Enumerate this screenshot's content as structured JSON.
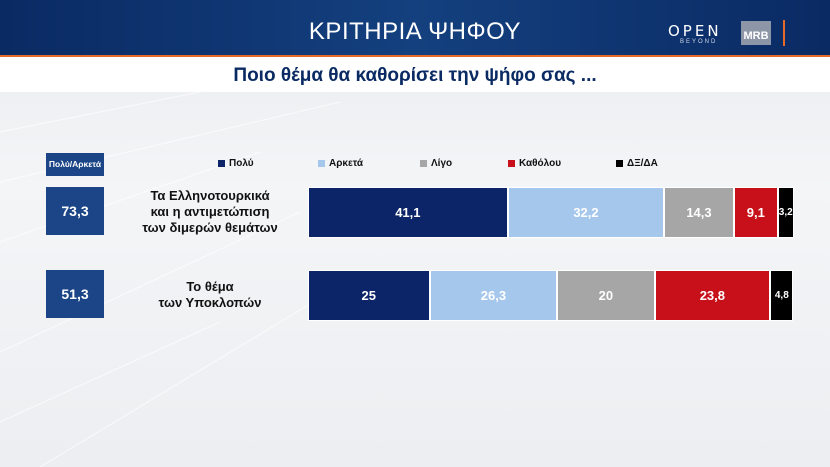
{
  "header": {
    "title": "ΚΡΙΤΗΡΙΑ ΨΗΦΟΥ",
    "logo_open": "OPEN",
    "logo_beyond": "BEYOND",
    "logo_mrb": "MRB"
  },
  "question": "Ποιο θέμα θα καθορίσει την ψήφο σας ...",
  "summary_header": "Πολύ/Αρκετά",
  "colors": {
    "polu": "#0c2468",
    "arketa": "#a5c7ec",
    "ligo": "#a6a6a6",
    "katholou": "#c8101a",
    "dk": "#000000"
  },
  "chart_data": {
    "type": "bar",
    "orientation": "horizontal",
    "stacked": true,
    "categories": [
      [
        "Τα Ελληνοτουρκικά",
        "και η αντιμετώπιση",
        "των διμερών θεμάτων"
      ],
      [
        "Το θέμα",
        "των Υποκλοπών"
      ]
    ],
    "summary_values": [
      "73,3",
      "51,3"
    ],
    "series": [
      {
        "name": "Πολύ",
        "color": "#0c2468",
        "values": [
          41.1,
          25
        ],
        "labels": [
          "41,1",
          "25"
        ]
      },
      {
        "name": "Αρκετά",
        "color": "#a5c7ec",
        "values": [
          32.2,
          26.3
        ],
        "labels": [
          "32,2",
          "26,3"
        ]
      },
      {
        "name": "Λίγο",
        "color": "#a6a6a6",
        "values": [
          14.3,
          20
        ],
        "labels": [
          "14,3",
          "20"
        ]
      },
      {
        "name": "Καθόλου",
        "color": "#c8101a",
        "values": [
          9.1,
          23.8
        ],
        "labels": [
          "9,1",
          "23,8"
        ]
      },
      {
        "name": "ΔΞ/ΔΑ",
        "color": "#000000",
        "values": [
          3.2,
          4.8
        ],
        "labels": [
          "3,2",
          "4,8"
        ]
      }
    ],
    "legend_position": "top",
    "xlim": [
      0,
      100
    ]
  }
}
